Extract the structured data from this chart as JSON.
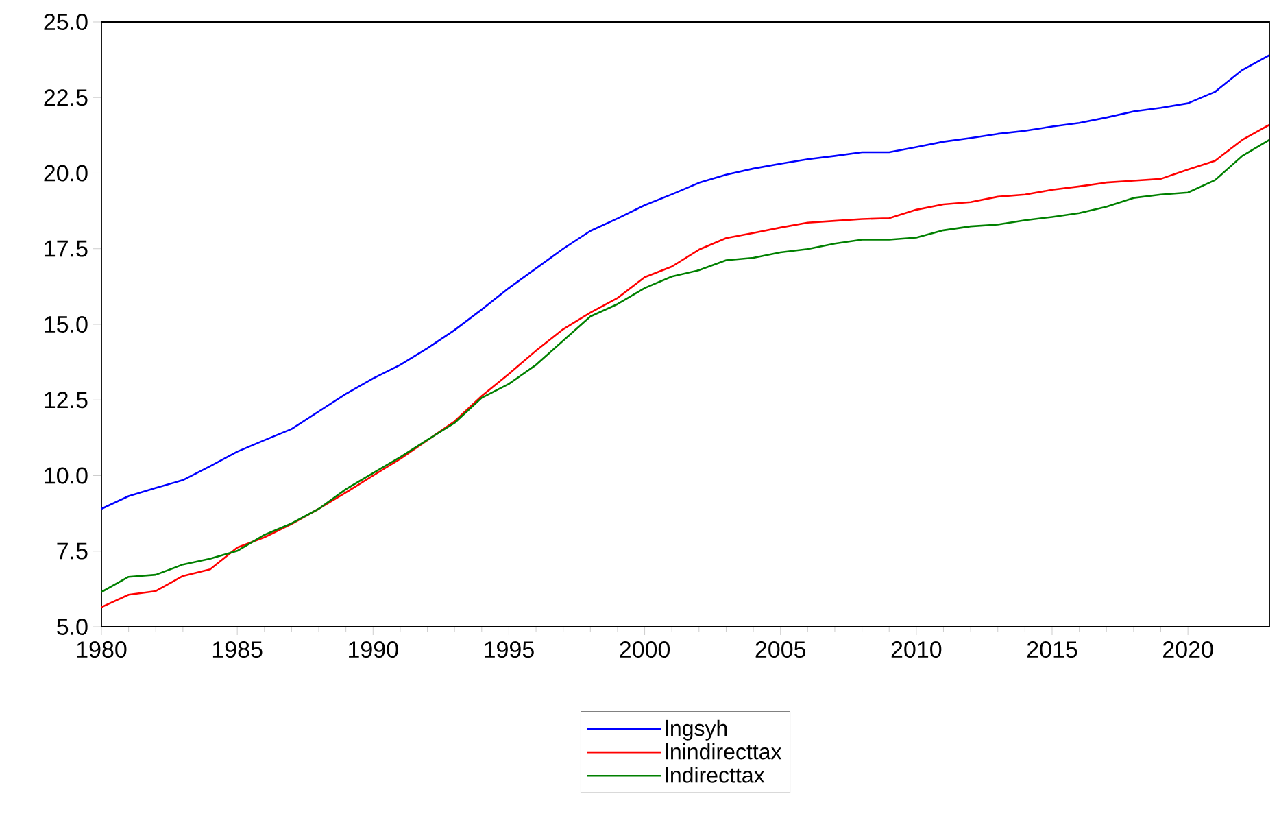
{
  "chart_data": {
    "type": "line",
    "x": [
      1980,
      1981,
      1982,
      1983,
      1984,
      1985,
      1986,
      1987,
      1988,
      1989,
      1990,
      1991,
      1992,
      1993,
      1994,
      1995,
      1996,
      1997,
      1998,
      1999,
      2000,
      2001,
      2002,
      2003,
      2004,
      2005,
      2006,
      2007,
      2008,
      2009,
      2010,
      2011,
      2012,
      2013,
      2014,
      2015,
      2016,
      2017,
      2018,
      2019,
      2020,
      2021,
      2022,
      2023
    ],
    "series": [
      {
        "name": "lngsyh",
        "color": "#0000ff",
        "values": [
          8.9,
          9.32,
          9.59,
          9.85,
          10.31,
          10.79,
          11.17,
          11.54,
          12.12,
          12.7,
          13.21,
          13.66,
          14.21,
          14.81,
          15.49,
          16.2,
          16.85,
          17.5,
          18.09,
          18.5,
          18.94,
          19.3,
          19.68,
          19.95,
          20.15,
          20.31,
          20.46,
          20.57,
          20.69,
          20.69,
          20.86,
          21.04,
          21.16,
          21.3,
          21.4,
          21.54,
          21.66,
          21.84,
          22.04,
          22.16,
          22.31,
          22.69,
          23.41,
          23.9
        ]
      },
      {
        "name": "lnindirecttax",
        "color": "#ff0000",
        "values": [
          5.65,
          6.06,
          6.18,
          6.68,
          6.9,
          7.62,
          7.96,
          8.4,
          8.9,
          9.44,
          10.0,
          10.55,
          11.17,
          11.79,
          12.63,
          13.36,
          14.13,
          14.84,
          15.39,
          15.87,
          16.56,
          16.91,
          17.47,
          17.85,
          18.02,
          18.2,
          18.36,
          18.42,
          18.48,
          18.51,
          18.79,
          18.97,
          19.04,
          19.22,
          19.29,
          19.45,
          19.56,
          19.69,
          19.75,
          19.81,
          20.12,
          20.41,
          21.1,
          21.6
        ]
      },
      {
        "name": "lndirecttax",
        "color": "#008000",
        "values": [
          6.15,
          6.65,
          6.72,
          7.06,
          7.25,
          7.51,
          8.04,
          8.42,
          8.9,
          9.55,
          10.08,
          10.61,
          11.18,
          11.74,
          12.57,
          13.03,
          13.66,
          14.46,
          15.26,
          15.67,
          16.2,
          16.58,
          16.79,
          17.12,
          17.2,
          17.38,
          17.49,
          17.67,
          17.8,
          17.8,
          17.87,
          18.11,
          18.24,
          18.3,
          18.44,
          18.55,
          18.68,
          18.89,
          19.18,
          19.29,
          19.36,
          19.77,
          20.57,
          21.1
        ]
      }
    ],
    "xlim": [
      1980,
      2023
    ],
    "xticks": [
      1980,
      1985,
      1990,
      1995,
      2000,
      2005,
      2010,
      2015,
      2020
    ],
    "ylim": [
      5.0,
      25.0
    ],
    "yticks": [
      {
        "value": 5,
        "label": "5.0"
      },
      {
        "value": 7.5,
        "label": "7.5"
      },
      {
        "value": 10,
        "label": "10.0"
      },
      {
        "value": 12.5,
        "label": "12.5"
      },
      {
        "value": 15,
        "label": "15.0"
      },
      {
        "value": 17.5,
        "label": "17.5"
      },
      {
        "value": 20,
        "label": "20.0"
      },
      {
        "value": 22.5,
        "label": "22.5"
      },
      {
        "value": 25,
        "label": "25.0"
      }
    ],
    "grid": false,
    "legend": "bottom",
    "marker": "none",
    "line_style": "solid"
  }
}
